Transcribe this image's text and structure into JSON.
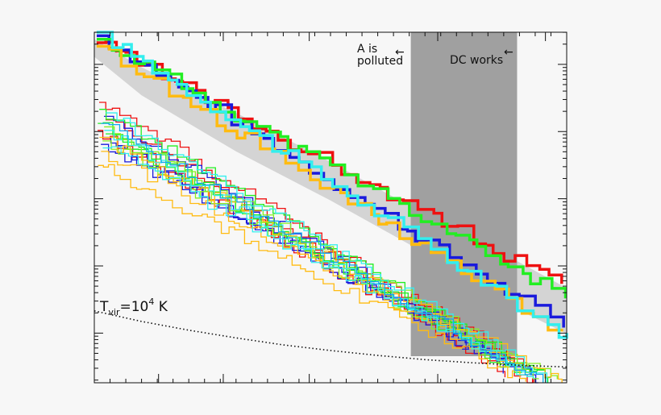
{
  "chart_data": {
    "type": "line",
    "title": "",
    "xlabel": "",
    "ylabel": "",
    "y_scale": "log",
    "xlim": [
      0,
      1
    ],
    "ylim": [
      0,
      1
    ],
    "annotations": {
      "left_region_line1": "A is",
      "left_region_line2": "polluted",
      "right_region_label": "DC works",
      "arrow_glyph": "←",
      "tvir_symbol": "T",
      "tvir_subscript": "vir",
      "tvir_equals": "=10",
      "tvir_exponent": "4",
      "tvir_unit": " K"
    },
    "shaded_region": {
      "x_start": 0.67,
      "x_end": 0.895,
      "color": "#a0a0a0"
    },
    "envelope_band": {
      "color": "#d4d4d4",
      "x": [
        0.0,
        0.1,
        0.3,
        0.5,
        0.7,
        0.85,
        1.0
      ],
      "upper": [
        0.98,
        0.9,
        0.77,
        0.63,
        0.48,
        0.38,
        0.27
      ],
      "lower": [
        0.93,
        0.82,
        0.66,
        0.52,
        0.37,
        0.24,
        0.14
      ]
    },
    "threshold_curve": {
      "name": "T_vir = 10^4 K",
      "style": "dotted",
      "color": "#111111",
      "x": [
        0.0,
        0.1,
        0.2,
        0.3,
        0.4,
        0.5,
        0.6,
        0.7,
        0.8,
        0.9,
        1.0
      ],
      "y": [
        0.205,
        0.175,
        0.15,
        0.128,
        0.108,
        0.092,
        0.078,
        0.066,
        0.057,
        0.05,
        0.045
      ]
    },
    "thick_series": [
      {
        "name": "red",
        "color": "#ee1111",
        "y0": 0.97,
        "y1": 0.27,
        "seed": 3
      },
      {
        "name": "blue",
        "color": "#1a1adc",
        "y0": 0.99,
        "y1": 0.15,
        "seed": 7
      },
      {
        "name": "green",
        "color": "#22ee22",
        "y0": 0.98,
        "y1": 0.24,
        "seed": 11
      },
      {
        "name": "orange",
        "color": "#ffbb11",
        "y0": 0.96,
        "y1": 0.13,
        "seed": 13
      },
      {
        "name": "cyan",
        "color": "#33eeee",
        "y0": 1.0,
        "y1": 0.13,
        "seed": 17
      }
    ],
    "thin_series": [
      {
        "color": "#ee1111",
        "y0": 0.8,
        "x_end": 0.96,
        "seed": 21
      },
      {
        "color": "#ee1111",
        "y0": 0.72,
        "x_end": 0.9,
        "seed": 22
      },
      {
        "color": "#ee1111",
        "y0": 0.75,
        "x_end": 0.93,
        "seed": 23
      },
      {
        "color": "#1a1adc",
        "y0": 0.76,
        "x_end": 0.94,
        "seed": 24
      },
      {
        "color": "#1a1adc",
        "y0": 0.7,
        "x_end": 0.92,
        "seed": 25
      },
      {
        "color": "#1a1adc",
        "y0": 0.68,
        "x_end": 0.95,
        "seed": 26
      },
      {
        "color": "#22ee22",
        "y0": 0.78,
        "x_end": 0.97,
        "seed": 27
      },
      {
        "color": "#22ee22",
        "y0": 0.74,
        "x_end": 0.93,
        "seed": 28
      },
      {
        "color": "#22ee22",
        "y0": 0.71,
        "x_end": 0.96,
        "seed": 29
      },
      {
        "color": "#88ee22",
        "y0": 0.73,
        "x_end": 0.98,
        "seed": 30
      },
      {
        "color": "#88ee22",
        "y0": 0.69,
        "x_end": 0.94,
        "seed": 31
      },
      {
        "color": "#ffbb11",
        "y0": 0.66,
        "x_end": 0.95,
        "seed": 32
      },
      {
        "color": "#ffbb11",
        "y0": 0.7,
        "x_end": 0.99,
        "seed": 33
      },
      {
        "color": "#ffbb11",
        "y0": 0.62,
        "x_end": 0.92,
        "seed": 34
      },
      {
        "color": "#33eeee",
        "y0": 0.77,
        "x_end": 0.97,
        "seed": 35
      },
      {
        "color": "#33eeee",
        "y0": 0.72,
        "x_end": 0.93,
        "seed": 36
      },
      {
        "color": "#33eeee",
        "y0": 0.67,
        "x_end": 0.96,
        "seed": 37
      },
      {
        "color": "#11aaee",
        "y0": 0.74,
        "x_end": 0.95,
        "seed": 38
      }
    ]
  }
}
